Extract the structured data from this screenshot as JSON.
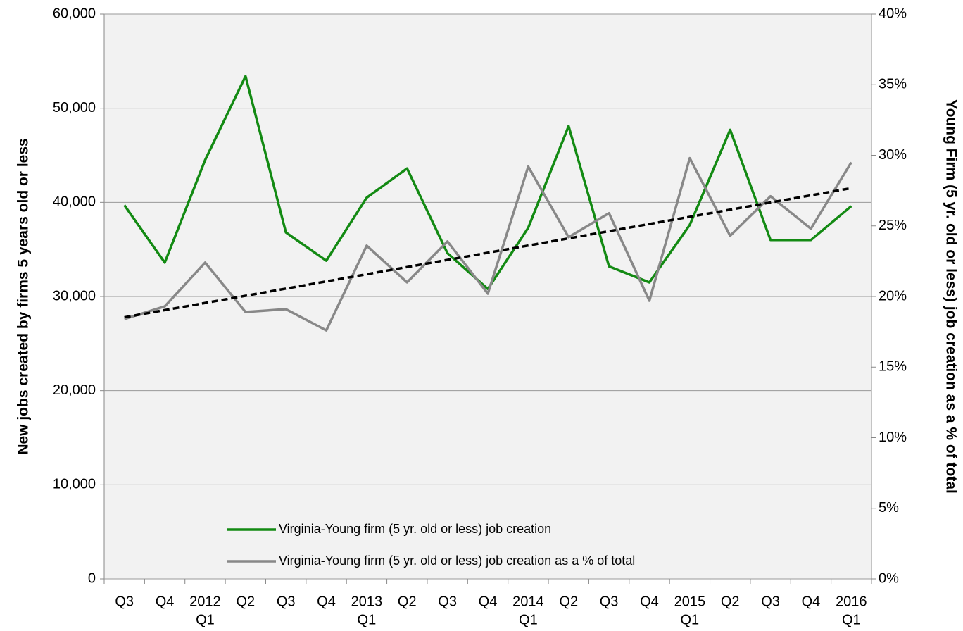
{
  "chart_data": {
    "type": "line",
    "categories": [
      [
        "Q3"
      ],
      [
        "Q4"
      ],
      [
        "2012",
        "Q1"
      ],
      [
        "Q2"
      ],
      [
        "Q3"
      ],
      [
        "Q4"
      ],
      [
        "2013",
        "Q1"
      ],
      [
        "Q2"
      ],
      [
        "Q3"
      ],
      [
        "Q4"
      ],
      [
        "2014",
        "Q1"
      ],
      [
        "Q2"
      ],
      [
        "Q3"
      ],
      [
        "Q4"
      ],
      [
        "2015",
        "Q1"
      ],
      [
        "Q2"
      ],
      [
        "Q3"
      ],
      [
        "Q4"
      ],
      [
        "2016",
        "Q1"
      ]
    ],
    "y_label": "New jobs created by firms 5 years old or less",
    "y2_label": "Young Firm (5 yr. old or less) job creation as a % of total",
    "ylim": [
      0,
      60000
    ],
    "yticks": [
      0,
      {
        "value": 10000,
        "label": "10,000"
      },
      {
        "value": 20000,
        "label": "20,000"
      },
      {
        "value": 30000,
        "label": "30,000"
      },
      {
        "value": 40000,
        "label": "40,000"
      },
      {
        "value": 50000,
        "label": "50,000"
      },
      {
        "value": 60000,
        "label": "60,000"
      }
    ],
    "y2lim": [
      0,
      40
    ],
    "y2ticks": [
      {
        "value": 0,
        "label": "0%"
      },
      {
        "value": 5,
        "label": "5%"
      },
      {
        "value": 10,
        "label": "10%"
      },
      {
        "value": 15,
        "label": "15%"
      },
      {
        "value": 20,
        "label": "20%"
      },
      {
        "value": 25,
        "label": "25%"
      },
      {
        "value": 30,
        "label": "30%"
      },
      {
        "value": 35,
        "label": "35%"
      },
      {
        "value": 40,
        "label": "40%"
      }
    ],
    "grid": true,
    "trendline": {
      "series": 1,
      "color": "#000000"
    },
    "series": [
      {
        "name": "Virginia-Young firm (5 yr. old or less) job creation",
        "color": "#138a13",
        "values": [
          39700,
          33600,
          44500,
          53400,
          36800,
          33800,
          40500,
          43600,
          34600,
          30800,
          37300,
          48100,
          33200,
          31500,
          37600,
          47700,
          36000,
          36000,
          39600
        ]
      },
      {
        "name": "Virginia-Young firm (5 yr. old or less) job creation as a % of total",
        "color": "#888888",
        "axis": "y2",
        "values": [
          18.4,
          19.3,
          22.4,
          18.9,
          19.1,
          17.6,
          23.6,
          21.0,
          23.9,
          20.2,
          29.2,
          24.2,
          25.9,
          19.7,
          29.8,
          24.3,
          27.1,
          24.8,
          29.5
        ]
      }
    ]
  }
}
